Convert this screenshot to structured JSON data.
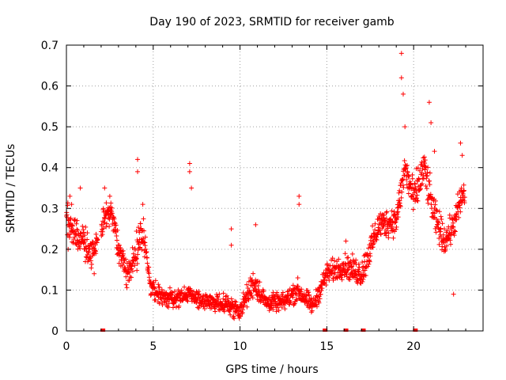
{
  "chart_data": {
    "type": "scatter",
    "title": "Day 190 of 2023, SRMTID for receiver gamb",
    "xlabel": "GPS time / hours",
    "ylabel": "SRMTID / TECUs",
    "xlim": [
      0,
      24
    ],
    "ylim": [
      0,
      0.7
    ],
    "xticks": [
      0,
      5,
      10,
      15,
      20
    ],
    "yticks": [
      0,
      0.1,
      0.2,
      0.3,
      0.4,
      0.5,
      0.6,
      0.7
    ],
    "xtick_labels": [
      "0",
      "5",
      "10",
      "15",
      "20"
    ],
    "ytick_labels": [
      "0",
      "0.1",
      "0.2",
      "0.3",
      "0.4",
      "0.5",
      "0.6",
      "0.7"
    ],
    "grid": true,
    "marker": "+",
    "series": [
      {
        "name": "SRMTID",
        "color": "#ff0000",
        "profile": [
          {
            "t": 0.0,
            "mean": 0.27,
            "spread": 0.07
          },
          {
            "t": 0.5,
            "mean": 0.24,
            "spread": 0.06
          },
          {
            "t": 1.0,
            "mean": 0.22,
            "spread": 0.06
          },
          {
            "t": 1.5,
            "mean": 0.19,
            "spread": 0.05
          },
          {
            "t": 2.2,
            "mean": 0.28,
            "spread": 0.05
          },
          {
            "t": 2.6,
            "mean": 0.3,
            "spread": 0.05
          },
          {
            "t": 3.0,
            "mean": 0.2,
            "spread": 0.05
          },
          {
            "t": 3.5,
            "mean": 0.14,
            "spread": 0.04
          },
          {
            "t": 4.0,
            "mean": 0.19,
            "spread": 0.06
          },
          {
            "t": 4.4,
            "mean": 0.25,
            "spread": 0.06
          },
          {
            "t": 4.8,
            "mean": 0.12,
            "spread": 0.04
          },
          {
            "t": 5.5,
            "mean": 0.08,
            "spread": 0.03
          },
          {
            "t": 6.5,
            "mean": 0.08,
            "spread": 0.03
          },
          {
            "t": 7.0,
            "mean": 0.09,
            "spread": 0.03
          },
          {
            "t": 8.0,
            "mean": 0.07,
            "spread": 0.03
          },
          {
            "t": 9.0,
            "mean": 0.07,
            "spread": 0.03
          },
          {
            "t": 10.0,
            "mean": 0.05,
            "spread": 0.03
          },
          {
            "t": 10.8,
            "mean": 0.12,
            "spread": 0.05
          },
          {
            "t": 11.5,
            "mean": 0.07,
            "spread": 0.03
          },
          {
            "t": 12.5,
            "mean": 0.07,
            "spread": 0.03
          },
          {
            "t": 13.3,
            "mean": 0.1,
            "spread": 0.04
          },
          {
            "t": 14.2,
            "mean": 0.06,
            "spread": 0.03
          },
          {
            "t": 15.0,
            "mean": 0.14,
            "spread": 0.04
          },
          {
            "t": 16.0,
            "mean": 0.16,
            "spread": 0.04
          },
          {
            "t": 17.0,
            "mean": 0.14,
            "spread": 0.05
          },
          {
            "t": 17.5,
            "mean": 0.2,
            "spread": 0.05
          },
          {
            "t": 18.0,
            "mean": 0.26,
            "spread": 0.05
          },
          {
            "t": 19.0,
            "mean": 0.27,
            "spread": 0.05
          },
          {
            "t": 19.5,
            "mean": 0.4,
            "spread": 0.06
          },
          {
            "t": 20.0,
            "mean": 0.32,
            "spread": 0.07
          },
          {
            "t": 20.6,
            "mean": 0.4,
            "spread": 0.07
          },
          {
            "t": 21.2,
            "mean": 0.28,
            "spread": 0.06
          },
          {
            "t": 21.8,
            "mean": 0.22,
            "spread": 0.05
          },
          {
            "t": 22.3,
            "mean": 0.26,
            "spread": 0.05
          },
          {
            "t": 22.8,
            "mean": 0.33,
            "spread": 0.06
          }
        ],
        "outliers": [
          [
            0.1,
            0.2
          ],
          [
            0.2,
            0.33
          ],
          [
            0.3,
            0.31
          ],
          [
            0.8,
            0.35
          ],
          [
            1.6,
            0.14
          ],
          [
            2.2,
            0.35
          ],
          [
            2.5,
            0.33
          ],
          [
            4.1,
            0.42
          ],
          [
            4.1,
            0.39
          ],
          [
            4.4,
            0.31
          ],
          [
            7.1,
            0.41
          ],
          [
            7.1,
            0.39
          ],
          [
            7.2,
            0.35
          ],
          [
            9.5,
            0.25
          ],
          [
            9.5,
            0.21
          ],
          [
            10.9,
            0.26
          ],
          [
            13.4,
            0.33
          ],
          [
            13.4,
            0.31
          ],
          [
            16.1,
            0.22
          ],
          [
            19.3,
            0.68
          ],
          [
            19.3,
            0.62
          ],
          [
            19.4,
            0.58
          ],
          [
            19.5,
            0.5
          ],
          [
            20.9,
            0.56
          ],
          [
            21.0,
            0.51
          ],
          [
            21.2,
            0.44
          ],
          [
            22.3,
            0.09
          ],
          [
            22.7,
            0.46
          ],
          [
            22.8,
            0.43
          ]
        ]
      },
      {
        "name": "zero-markers",
        "color": "#ff0000",
        "marker": "square",
        "points": [
          [
            2.1,
            0
          ],
          [
            14.9,
            0
          ],
          [
            16.1,
            0
          ],
          [
            17.1,
            0
          ],
          [
            20.1,
            0
          ]
        ]
      }
    ],
    "gaps": [
      [
        1.8,
        2.0
      ],
      [
        22.95,
        24
      ]
    ]
  }
}
